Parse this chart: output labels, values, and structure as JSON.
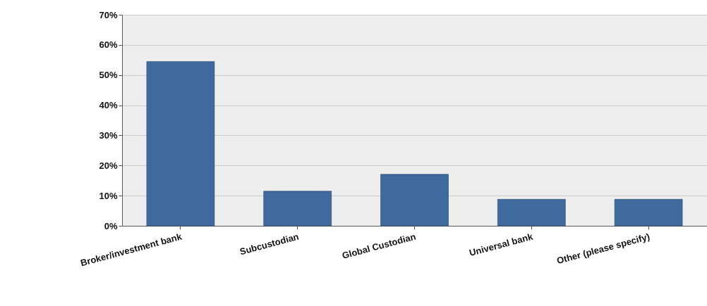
{
  "chart_data": {
    "type": "bar",
    "categories": [
      "Broker/investment bank",
      "Subcustodian",
      "Global Custodian",
      "Universal  bank",
      "Other (please specify)"
    ],
    "values": [
      54.5,
      11.5,
      17.1,
      8.8,
      8.8
    ],
    "color": "#3f6a9e",
    "ylim": [
      0,
      70
    ],
    "yticks": [
      {
        "value": 0,
        "label": "0%"
      },
      {
        "value": 10,
        "label": "10%"
      },
      {
        "value": 20,
        "label": "20%"
      },
      {
        "value": 30,
        "label": "30%"
      },
      {
        "value": 40,
        "label": "40%"
      },
      {
        "value": 50,
        "label": "50%"
      },
      {
        "value": 60,
        "label": "60%"
      },
      {
        "value": 70,
        "label": "70%"
      }
    ],
    "grid": "y"
  }
}
